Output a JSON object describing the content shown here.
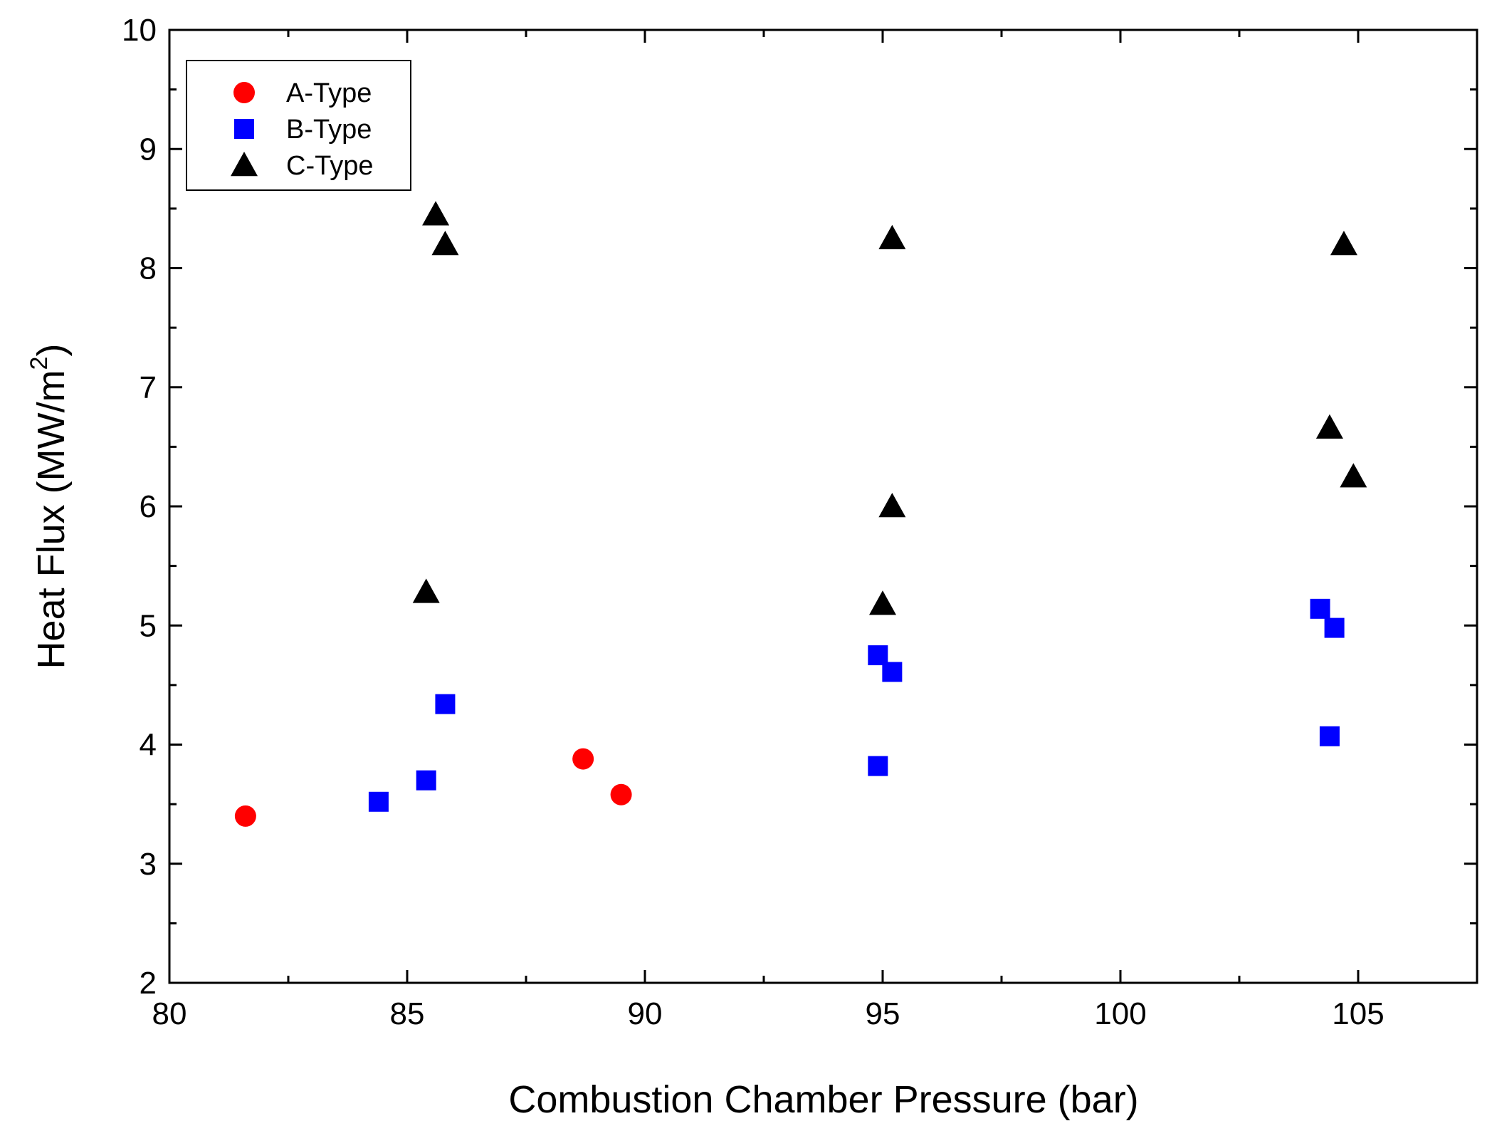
{
  "chart_data": {
    "type": "scatter",
    "title": "",
    "xlabel": "Combustion Chamber Pressure (bar)",
    "ylabel_main": "Heat Flux (MW/m",
    "ylabel_sup": "2",
    "ylabel_close": ")",
    "xlim": [
      80,
      107.5
    ],
    "ylim": [
      2,
      10
    ],
    "x_ticks": [
      80,
      85,
      90,
      95,
      100,
      105
    ],
    "y_ticks": [
      2,
      3,
      4,
      5,
      6,
      7,
      8,
      9,
      10
    ],
    "x_tick_labels": [
      "80",
      "85",
      "90",
      "95",
      "100",
      "105"
    ],
    "y_tick_labels": [
      "2",
      "3",
      "4",
      "5",
      "6",
      "7",
      "8",
      "9",
      "10"
    ],
    "x_minor_step": 2.5,
    "y_minor_step": 0.5,
    "grid": false,
    "legend_position": "top-left",
    "series": [
      {
        "name": "A-Type",
        "marker": "circle",
        "color": "#ff0000",
        "points": [
          [
            81.6,
            3.4
          ],
          [
            88.7,
            3.88
          ],
          [
            89.5,
            3.58
          ]
        ]
      },
      {
        "name": "B-Type",
        "marker": "square",
        "color": "#0000ff",
        "points": [
          [
            84.4,
            3.52
          ],
          [
            85.4,
            3.7
          ],
          [
            85.8,
            4.34
          ],
          [
            94.9,
            4.75
          ],
          [
            95.2,
            4.61
          ],
          [
            94.9,
            3.82
          ],
          [
            104.2,
            5.14
          ],
          [
            104.5,
            4.98
          ],
          [
            104.4,
            4.07
          ]
        ]
      },
      {
        "name": "C-Type",
        "marker": "triangle",
        "color": "#000000",
        "points": [
          [
            85.6,
            8.45
          ],
          [
            85.8,
            8.2
          ],
          [
            85.4,
            5.28
          ],
          [
            95.2,
            8.25
          ],
          [
            95.2,
            6.0
          ],
          [
            95.0,
            5.18
          ],
          [
            104.7,
            8.2
          ],
          [
            104.4,
            6.66
          ],
          [
            104.9,
            6.25
          ]
        ]
      }
    ]
  }
}
